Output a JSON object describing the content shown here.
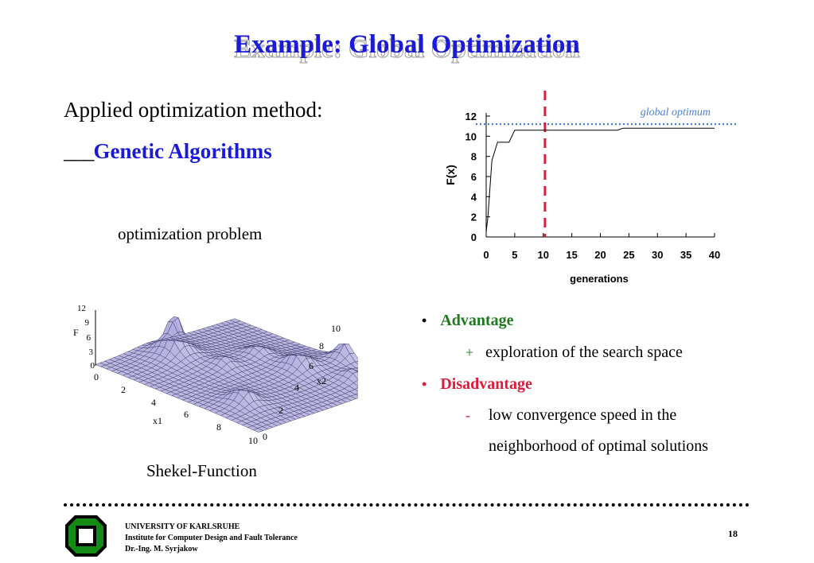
{
  "slide": {
    "title": "Example: Global Optimization",
    "method_label": "Applied optimization method:",
    "method_prefix": "___",
    "method_name": "Genetic Algorithms",
    "problem_label": "optimization problem",
    "surface_caption": "Shekel-Function",
    "page_number": "18"
  },
  "surface_plot": {
    "z_label": "F",
    "z_ticks": [
      "12",
      "9",
      "6",
      "3",
      "0"
    ],
    "x_label": "x1",
    "x_ticks": [
      "0",
      "2",
      "4",
      "6",
      "8",
      "10"
    ],
    "y_label": "x2",
    "y_ticks": [
      "0",
      "2",
      "4",
      "6",
      "8",
      "10"
    ],
    "surface_color": "#b3aede",
    "mesh_color": "#3d3b66"
  },
  "chart_data": {
    "type": "line",
    "xlabel": "generations",
    "ylabel": "F(x)",
    "x_ticks": [
      "0",
      "5",
      "10",
      "15",
      "20",
      "25",
      "30",
      "35",
      "40"
    ],
    "y_ticks": [
      "0",
      "2",
      "4",
      "6",
      "8",
      "10",
      "12"
    ],
    "xlim": [
      0,
      40
    ],
    "ylim": [
      0,
      12
    ],
    "series": [
      {
        "x": [
          0,
          0.3,
          1,
          2,
          3,
          4,
          5,
          10,
          15,
          20,
          23,
          24,
          25,
          30,
          35,
          40
        ],
        "y": [
          0.5,
          2,
          7.6,
          9.4,
          9.4,
          9.4,
          10.6,
          10.6,
          10.6,
          10.6,
          10.6,
          10.8,
          10.8,
          10.8,
          10.8,
          10.8
        ],
        "color": "#000000"
      }
    ],
    "global_optimum": {
      "label": "global optimum",
      "value": 11.2,
      "color": "#4a7fd4"
    },
    "marker_line": {
      "x": 10.3,
      "color": "#e01a3a"
    }
  },
  "bullets": {
    "advantage_label": "Advantage",
    "advantage_symbol": "+",
    "advantage_item": "exploration of the search space",
    "disadvantage_label": "Disadvantage",
    "disadvantage_symbol": "-",
    "disadvantage_item_1": "low convergence speed in the",
    "disadvantage_item_2": "neighborhood of optimal solutions",
    "bullet_symbol": "•"
  },
  "footer": {
    "line1": "UNIVERSITY OF KARLSRUHE",
    "line2": "Institute for Computer Design and Fault Tolerance",
    "line3": "Dr.-Ing. M. Syrjakow"
  },
  "colors": {
    "title": "#1a1adb",
    "advantage": "#1e7a1e",
    "disadvantage": "#e01a3a",
    "logo": "#148c14"
  }
}
